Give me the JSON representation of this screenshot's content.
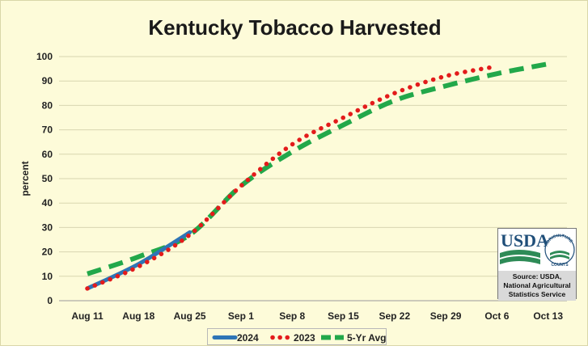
{
  "chart_data": {
    "type": "line",
    "title": "Kentucky Tobacco Harvested",
    "xlabel": "",
    "ylabel": "percent",
    "categories": [
      "Aug 11",
      "Aug 18",
      "Aug 25",
      "Sep 1",
      "Sep 8",
      "Sep 15",
      "Sep 22",
      "Sep 29",
      "Oct 6",
      "Oct 13"
    ],
    "ylim": [
      0,
      100
    ],
    "yticks": [
      0,
      10,
      20,
      30,
      40,
      50,
      60,
      70,
      80,
      90,
      100
    ],
    "grid": true,
    "legend_position": "bottom",
    "series": [
      {
        "name": "2024",
        "color": "#2e75b6",
        "style": "solid",
        "values": [
          5,
          15,
          28,
          null,
          null,
          null,
          null,
          null,
          null,
          null
        ]
      },
      {
        "name": "2023",
        "color": "#e31b1b",
        "style": "dotted",
        "values": [
          5,
          14,
          27,
          47,
          64,
          75,
          85,
          92,
          96,
          null
        ]
      },
      {
        "name": "5-Yr Avg",
        "color": "#22a84a",
        "style": "dashed",
        "values": [
          11,
          18,
          27,
          47,
          61,
          72,
          82,
          88,
          93,
          97
        ]
      }
    ]
  },
  "source": {
    "logo_text": "USDA",
    "logo_arc_text": "AGRICULTURE",
    "logo_sub_text": "COUNTS",
    "lines": [
      "Source: USDA,",
      "National Agricultural",
      "Statistics Service"
    ]
  }
}
